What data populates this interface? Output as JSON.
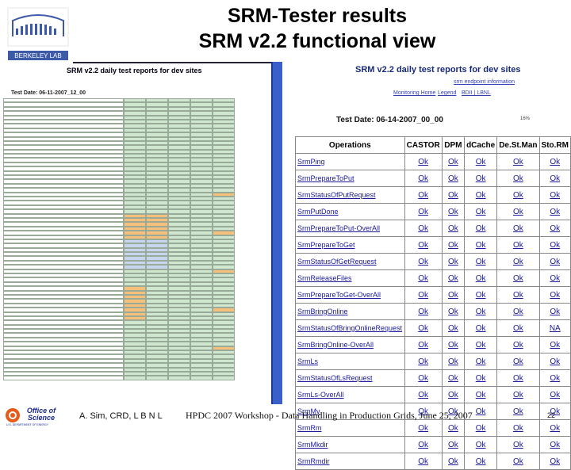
{
  "slide": {
    "title_line1": "SRM-Tester results",
    "title_line2": "SRM v2.2 functional view",
    "author": "A. Sim, CRD, L B N L",
    "footer": "HPDC 2007 Workshop - Data Handling in Production Grids, June 25, 2007",
    "page_number": "22",
    "logo_text": "BERKELEY LAB",
    "office_logo_line1": "Office of",
    "office_logo_line2": "Science",
    "office_logo_line3": "U.S. DEPARTMENT OF ENERGY"
  },
  "left_screenshot": {
    "heading": "SRM v2.2 daily test reports for dev sites",
    "date": "Test Date: 06-11-2007_12_00",
    "rows": 66
  },
  "right_screenshot": {
    "heading": "SRM v2.2 daily test reports for dev sites",
    "links": {
      "endpoint": "srm endpoint information",
      "monitor": "Monitoring Home",
      "legend": "Legend",
      "bestman": "BDII | LBNL"
    },
    "date": "Test Date: 06-14-2007_00_00",
    "percent": "16%",
    "columns": [
      "Operations",
      "CASTOR",
      "DPM",
      "dCache",
      "De.St.Man",
      "Sto.RM"
    ],
    "rows": [
      {
        "op": "SrmPing",
        "v": [
          "Ok",
          "Ok",
          "Ok",
          "Ok",
          "Ok"
        ]
      },
      {
        "op": "SrmPrepareToPut",
        "v": [
          "Ok",
          "Ok",
          "Ok",
          "Ok",
          "Ok"
        ]
      },
      {
        "op": "SrmStatusOfPutRequest",
        "v": [
          "Ok",
          "Ok",
          "Ok",
          "Ok",
          "Ok"
        ]
      },
      {
        "op": "SrmPutDone",
        "v": [
          "Ok",
          "Ok",
          "Ok",
          "Ok",
          "Ok"
        ]
      },
      {
        "op": "SrmPrepareToPut-OverAll",
        "v": [
          "Ok",
          "Ok",
          "Ok",
          "Ok",
          "Ok"
        ]
      },
      {
        "op": "SrmPrepareToGet",
        "v": [
          "Ok",
          "Ok",
          "Ok",
          "Ok",
          "Ok"
        ]
      },
      {
        "op": "SrmStatusOfGetRequest",
        "v": [
          "Ok",
          "Ok",
          "Ok",
          "Ok",
          "Ok"
        ]
      },
      {
        "op": "SrmReleaseFiles",
        "v": [
          "Ok",
          "Ok",
          "Ok",
          "Ok",
          "Ok"
        ]
      },
      {
        "op": "SrmPrepareToGet-OverAll",
        "v": [
          "Ok",
          "Ok",
          "Ok",
          "Ok",
          "Ok"
        ]
      },
      {
        "op": "SrmBringOnline",
        "v": [
          "Ok",
          "Ok",
          "Ok",
          "Ok",
          "Ok"
        ]
      },
      {
        "op": "SrmStatusOfBringOnlineRequest",
        "v": [
          "Ok",
          "Ok",
          "Ok",
          "Ok",
          "NA"
        ]
      },
      {
        "op": "SrmBringOnline-OverAll",
        "v": [
          "Ok",
          "Ok",
          "Ok",
          "Ok",
          "Ok"
        ]
      },
      {
        "op": "SrmLs",
        "v": [
          "Ok",
          "Ok",
          "Ok",
          "Ok",
          "Ok"
        ]
      },
      {
        "op": "SrmStatusOfLsRequest",
        "v": [
          "Ok",
          "Ok",
          "Ok",
          "Ok",
          "Ok"
        ]
      },
      {
        "op": "SrmLs-OverAll",
        "v": [
          "Ok",
          "Ok",
          "Ok",
          "Ok",
          "Ok"
        ]
      },
      {
        "op": "SrmMv",
        "v": [
          "Ok",
          "Ok",
          "Ok",
          "Ok",
          "Ok"
        ]
      },
      {
        "op": "SrmRm",
        "v": [
          "Ok",
          "Ok",
          "Ok",
          "Ok",
          "Ok"
        ]
      },
      {
        "op": "SrmMkdir",
        "v": [
          "Ok",
          "Ok",
          "Ok",
          "Ok",
          "Ok"
        ]
      },
      {
        "op": "SrmRmdir",
        "v": [
          "Ok",
          "Ok",
          "Ok",
          "Ok",
          "Ok"
        ]
      }
    ]
  }
}
